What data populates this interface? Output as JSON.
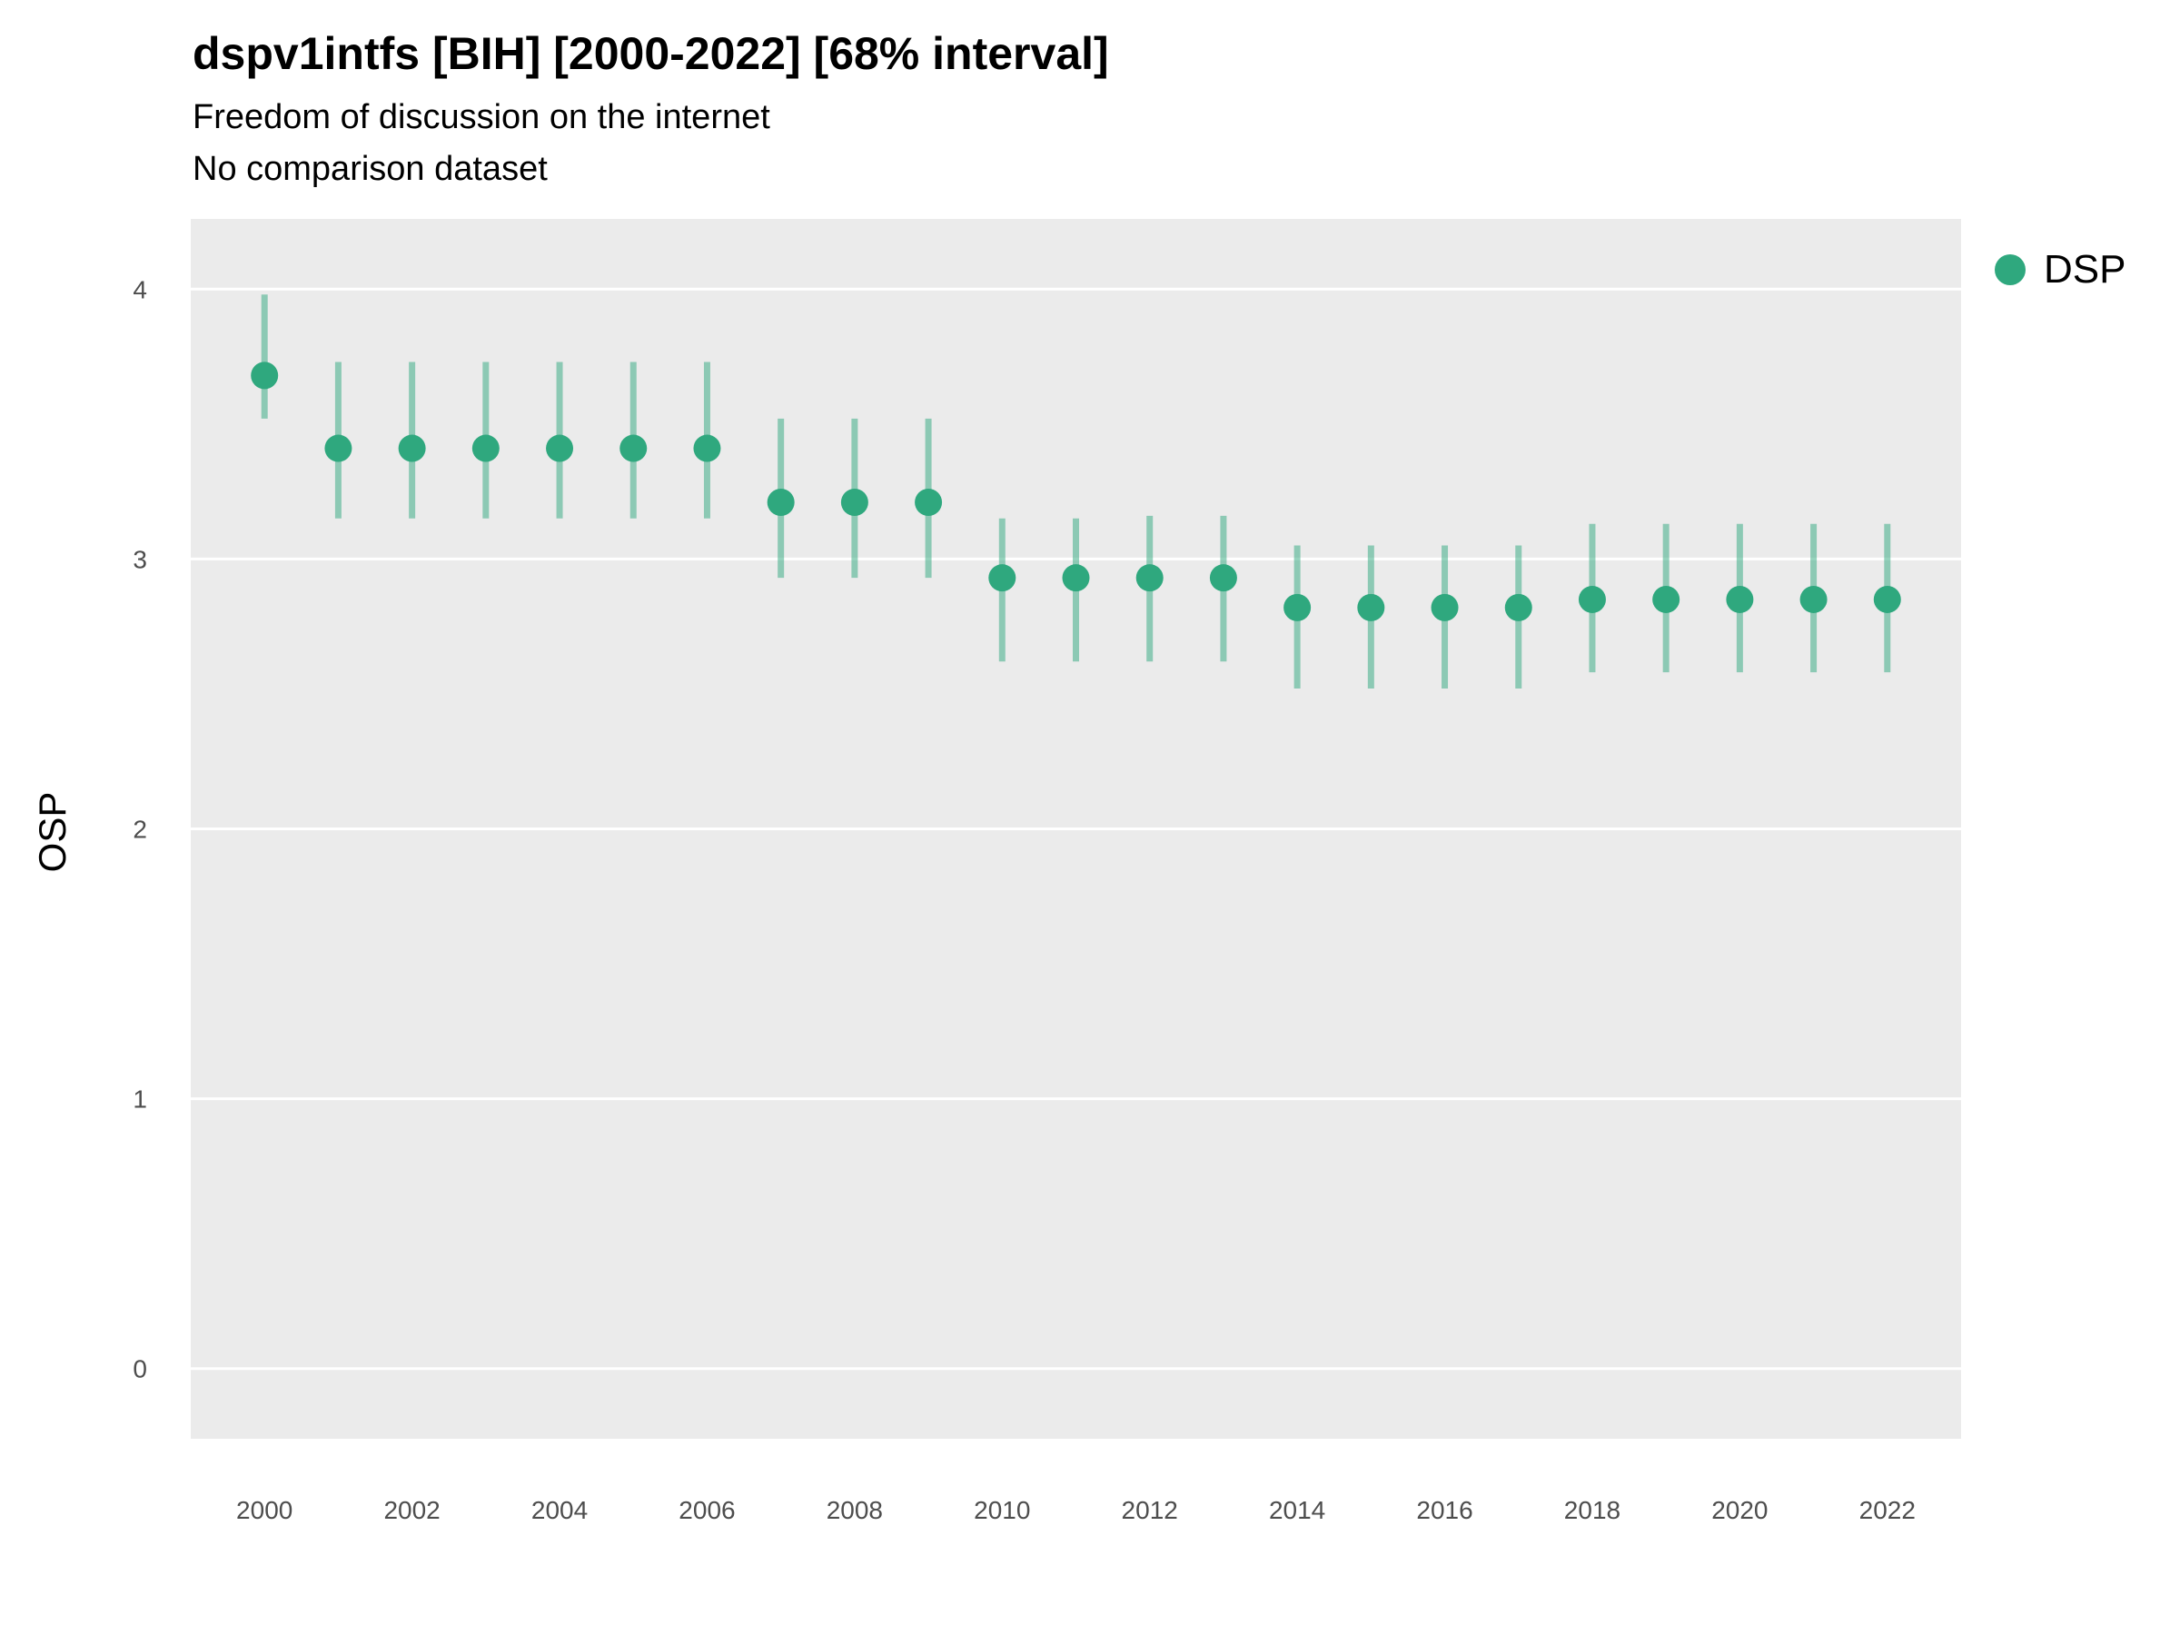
{
  "colors": {
    "point": "#2FA87E",
    "interval": "#2FA87E",
    "panel_bg": "#EBEBEB",
    "grid": "#FFFFFF",
    "tick_label": "#4D4D4D"
  },
  "legend": {
    "label": "DSP"
  },
  "chart_data": {
    "type": "scatter",
    "title": "dspv1intfs [BIH] [2000-2022] [68% interval]",
    "subtitle": "Freedom of discussion on the internet",
    "subtitle2": "No comparison dataset",
    "xlabel": "",
    "ylabel": "OSP",
    "x": [
      2000,
      2001,
      2002,
      2003,
      2004,
      2005,
      2006,
      2007,
      2008,
      2009,
      2010,
      2011,
      2012,
      2013,
      2014,
      2015,
      2016,
      2017,
      2018,
      2019,
      2020,
      2021,
      2022
    ],
    "series": [
      {
        "name": "DSP",
        "values": [
          3.68,
          3.41,
          3.41,
          3.41,
          3.41,
          3.41,
          3.41,
          3.21,
          3.21,
          3.21,
          2.93,
          2.93,
          2.93,
          2.93,
          2.82,
          2.82,
          2.82,
          2.82,
          2.85,
          2.85,
          2.85,
          2.85,
          2.85
        ],
        "lower": [
          3.52,
          3.15,
          3.15,
          3.15,
          3.15,
          3.15,
          3.15,
          2.93,
          2.93,
          2.93,
          2.62,
          2.62,
          2.62,
          2.62,
          2.52,
          2.52,
          2.52,
          2.52,
          2.58,
          2.58,
          2.58,
          2.58,
          2.58
        ],
        "upper": [
          3.98,
          3.73,
          3.73,
          3.73,
          3.73,
          3.73,
          3.73,
          3.52,
          3.52,
          3.52,
          3.15,
          3.15,
          3.16,
          3.16,
          3.05,
          3.05,
          3.05,
          3.05,
          3.13,
          3.13,
          3.13,
          3.13,
          3.13
        ]
      }
    ],
    "x_tick_labels": [
      2000,
      2002,
      2004,
      2006,
      2008,
      2010,
      2012,
      2014,
      2016,
      2018,
      2020,
      2022
    ],
    "y_ticks": [
      0,
      1,
      2,
      3,
      4
    ],
    "xlim": [
      1999,
      2023
    ],
    "ylim": [
      -0.26,
      4.26
    ],
    "grid": "major-horizontal",
    "legend_position": "right"
  }
}
